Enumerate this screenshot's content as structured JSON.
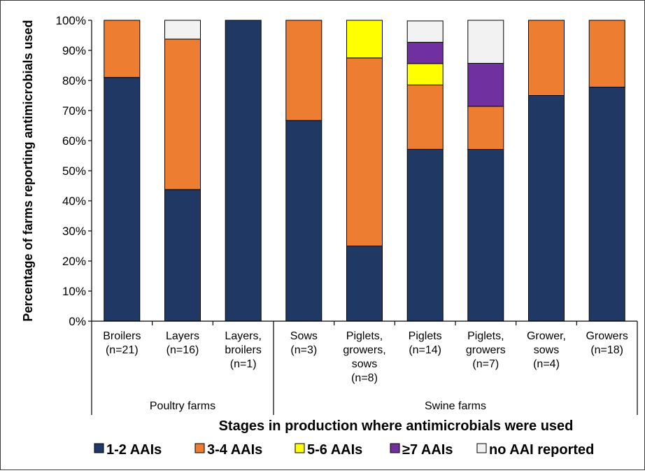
{
  "chart_data": {
    "type": "bar",
    "stacked": true,
    "xlabel": "Stages in production where antimicrobials were used",
    "ylabel": "Percentage of farms reporting antimicrobials used",
    "ylim": [
      0,
      100
    ],
    "y_ticks": [
      "0%",
      "10%",
      "20%",
      "30%",
      "40%",
      "50%",
      "60%",
      "70%",
      "80%",
      "90%",
      "100%"
    ],
    "categories": [
      [
        "Broilers",
        "(n=21)"
      ],
      [
        "Layers",
        "(n=16)"
      ],
      [
        "Layers,",
        "broilers",
        "(n=1)"
      ],
      [
        "Sows",
        "(n=3)"
      ],
      [
        "Piglets,",
        "growers,",
        "sows",
        "(n=8)"
      ],
      [
        "Piglets",
        "(n=14)"
      ],
      [
        "Piglets,",
        "growers",
        "(n=7)"
      ],
      [
        "Grower,",
        "sows",
        "(n=4)"
      ],
      [
        "Growers",
        "(n=18)"
      ]
    ],
    "groups": [
      {
        "label": "Poultry farms",
        "start": 0,
        "end": 2
      },
      {
        "label": "Swine farms",
        "start": 3,
        "end": 8
      }
    ],
    "series": [
      {
        "name": "1-2 AAIs",
        "color": "#203864",
        "values": [
          81,
          43.75,
          100,
          66.7,
          25,
          57.1,
          57.1,
          75,
          77.8
        ]
      },
      {
        "name": "3-4 AAIs",
        "color": "#ED7D31",
        "values": [
          19,
          50,
          0,
          33.3,
          62.5,
          21.4,
          14.3,
          25,
          22.2
        ]
      },
      {
        "name": "5-6 AAIs",
        "color": "#FFFF00",
        "values": [
          0,
          0,
          0,
          0,
          12.5,
          7.1,
          0,
          0,
          0
        ]
      },
      {
        "name": "≥7 AAIs",
        "color": "#7030A0",
        "values": [
          0,
          0,
          0,
          0,
          0,
          7.1,
          14.3,
          0,
          0
        ]
      },
      {
        "name": "no AAI reported",
        "color": "#F2F2F2",
        "values": [
          0,
          6.25,
          0,
          0,
          0,
          7.1,
          14.3,
          0,
          0
        ]
      }
    ],
    "grid": false,
    "legend_position": "bottom"
  }
}
